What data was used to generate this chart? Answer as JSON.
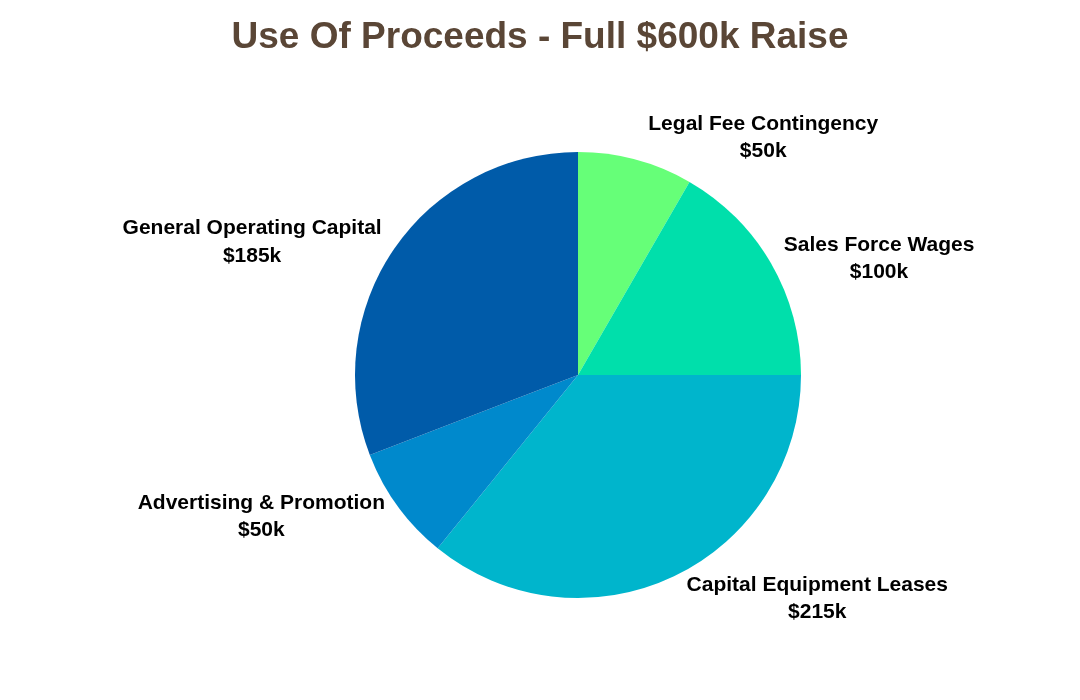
{
  "chart_data": {
    "type": "pie",
    "title": "Use Of Proceeds - Full $600k Raise",
    "categories": [
      "Legal Fee Contingency",
      "Sales Force Wages",
      "Capital Equipment Leases",
      "Advertising & Promotion",
      "General Operating Capital"
    ],
    "values": [
      50,
      100,
      215,
      50,
      185
    ],
    "value_labels": [
      "$50k",
      "$100k",
      "$215k",
      "$50k",
      "$185k"
    ],
    "colors": [
      "#66ff78",
      "#00dfab",
      "#00b5cc",
      "#0089cc",
      "#005ba9"
    ],
    "legend": false
  }
}
